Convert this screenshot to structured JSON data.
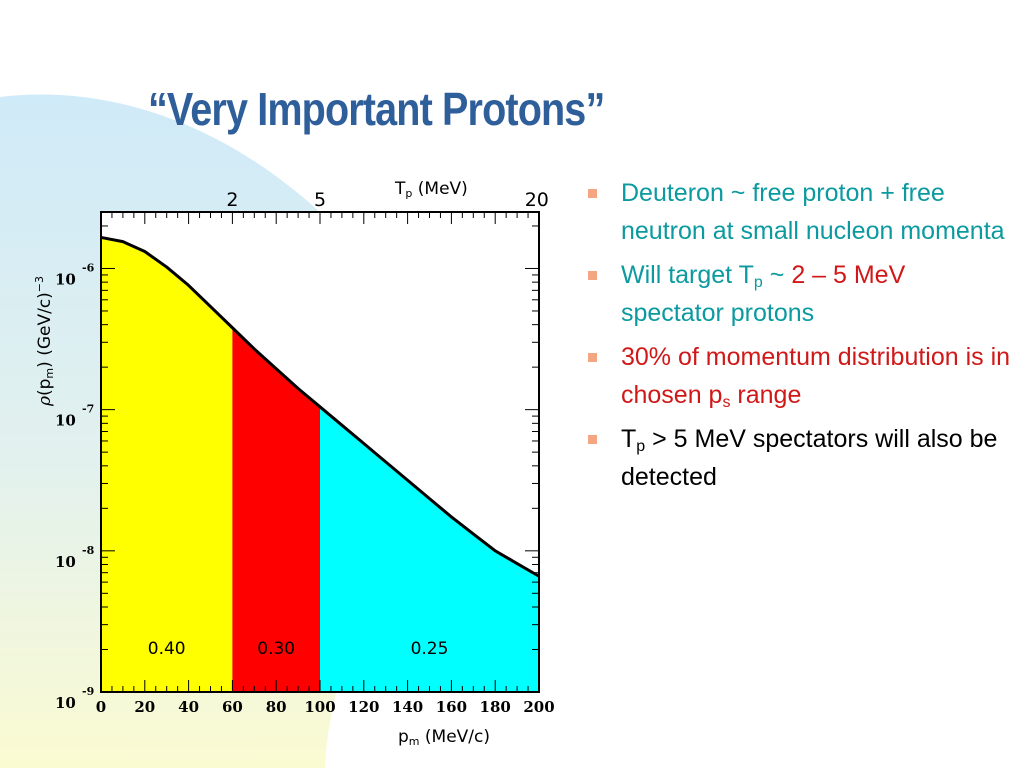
{
  "slide_title": "“Very Important Protons”",
  "colors": {
    "title": "#2f5f9a",
    "bullet_marker": "#f4a582",
    "teal_text": "#0b9aa0",
    "red_text": "#d01818",
    "bg_yellow": "#fbfbd2",
    "bg_blue": "#cfeaf8"
  },
  "chart_data": {
    "type": "area",
    "x_axis": {
      "label_main": "p",
      "label_sub": "m",
      "label_rest": " (MeV/c)",
      "range": [
        0,
        200
      ],
      "tick_labels": [
        "0",
        "20",
        "40",
        "60",
        "80",
        "100",
        "120",
        "140",
        "160",
        "180",
        "200"
      ]
    },
    "top_axis": {
      "label_main": "T",
      "label_sub": "p",
      "label_rest": " (MeV)",
      "ticks": [
        {
          "label": "2",
          "pm": 60
        },
        {
          "label": "5",
          "pm": 100
        },
        {
          "label": "20",
          "pm": 199
        }
      ]
    },
    "y_axis": {
      "label_rho": "ρ",
      "label_main": "(p",
      "label_sub": "m",
      "label_rest": ") (GeV/c)",
      "label_sup": "−3",
      "scale": "log",
      "range_log10": [
        -9,
        -5.6
      ],
      "ticks": [
        {
          "base": "10",
          "exp": "-6",
          "log": -6
        },
        {
          "base": "10",
          "exp": "-7",
          "log": -7
        },
        {
          "base": "10",
          "exp": "-8",
          "log": -8
        },
        {
          "base": "10",
          "exp": "-9",
          "log": -9
        }
      ]
    },
    "curve_log10": [
      [
        0,
        -5.78
      ],
      [
        10,
        -5.81
      ],
      [
        20,
        -5.88
      ],
      [
        30,
        -5.99
      ],
      [
        40,
        -6.12
      ],
      [
        50,
        -6.27
      ],
      [
        60,
        -6.42
      ],
      [
        70,
        -6.57
      ],
      [
        80,
        -6.71
      ],
      [
        90,
        -6.85
      ],
      [
        100,
        -6.98
      ],
      [
        110,
        -7.11
      ],
      [
        120,
        -7.24
      ],
      [
        130,
        -7.37
      ],
      [
        140,
        -7.5
      ],
      [
        150,
        -7.63
      ],
      [
        160,
        -7.76
      ],
      [
        170,
        -7.88
      ],
      [
        180,
        -8.0
      ],
      [
        190,
        -8.09
      ],
      [
        200,
        -8.18
      ]
    ],
    "regions": [
      {
        "from": 0,
        "to": 60,
        "color": "#ffff00",
        "label": "0.40"
      },
      {
        "from": 60,
        "to": 100,
        "color": "#ff0000",
        "label": "0.30"
      },
      {
        "from": 100,
        "to": 200,
        "color": "#00ffff",
        "label": "0.25"
      }
    ]
  },
  "bullets": [
    {
      "parts": [
        {
          "text": "Deuteron ~ free proton + free neutron at small nucleon momenta",
          "style": "teal"
        }
      ]
    },
    {
      "parts": [
        {
          "text": "Will target T",
          "style": "teal"
        },
        {
          "text": "p",
          "style": "teal",
          "sub": true
        },
        {
          "text": " ~ ",
          "style": "teal"
        },
        {
          "text": "2 – 5 MeV",
          "style": "red"
        },
        {
          "text": " spectator protons",
          "style": "teal"
        }
      ]
    },
    {
      "parts": [
        {
          "text": "30% of momentum distribution is in chosen p",
          "style": "red"
        },
        {
          "text": "s",
          "style": "red",
          "sub": true
        },
        {
          "text": " range",
          "style": "red"
        }
      ]
    },
    {
      "parts": [
        {
          "text": "T",
          "style": "black"
        },
        {
          "text": "p",
          "style": "black",
          "sub": true
        },
        {
          "text": " > 5 MeV spectators will also be detected",
          "style": "black"
        }
      ]
    }
  ]
}
